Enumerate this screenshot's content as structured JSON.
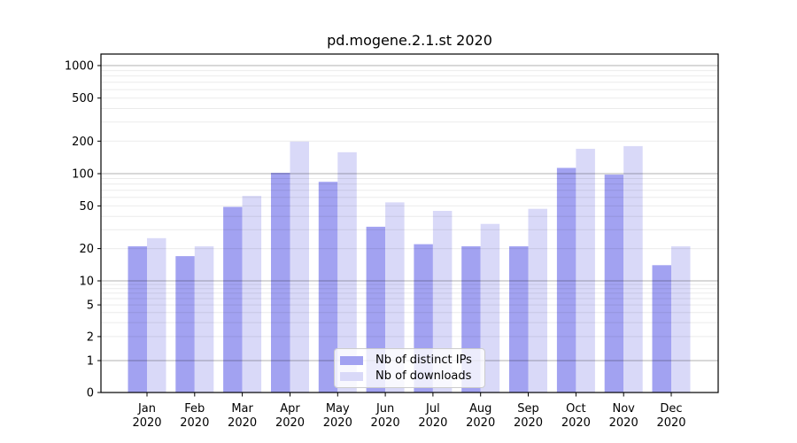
{
  "chart_data": {
    "type": "bar",
    "title": "pd.mogene.2.1.st 2020",
    "categories": [
      "Jan",
      "Feb",
      "Mar",
      "Apr",
      "May",
      "Jun",
      "Jul",
      "Aug",
      "Sep",
      "Oct",
      "Nov",
      "Dec"
    ],
    "category_year": "2020",
    "series": [
      {
        "name": "Nb of distinct IPs",
        "color": "#a2a2f1",
        "values": [
          21,
          17,
          49,
          102,
          84,
          32,
          22,
          21,
          21,
          113,
          98,
          14
        ]
      },
      {
        "name": "Nb of downloads",
        "color": "#d9d9f8",
        "values": [
          25,
          21,
          62,
          198,
          158,
          54,
          45,
          34,
          47,
          170,
          180,
          21
        ]
      }
    ],
    "yscale": "symlog",
    "ylim": [
      0,
      1300
    ],
    "yticks": [
      1000,
      500,
      200,
      100,
      50,
      20,
      10,
      5,
      2,
      1,
      0
    ],
    "grid": "horizontal-log",
    "legend_position": "lower-center"
  },
  "colors": {
    "background": "#ffffff",
    "spine": "#000000",
    "grid_major": "#b0b0b0",
    "grid_minor": "#ebebeb",
    "tick_text": "#000000"
  }
}
